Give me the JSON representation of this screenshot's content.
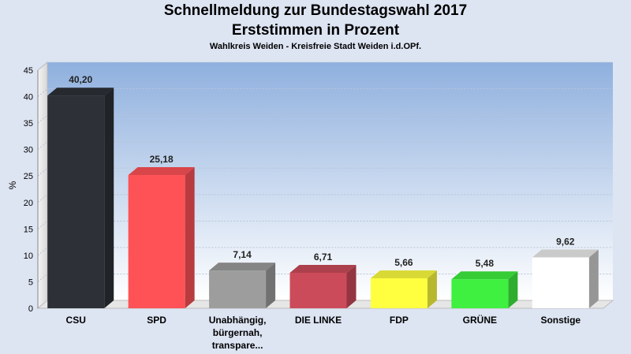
{
  "chart_data": {
    "type": "bar",
    "title": "Schnellmeldung zur Bundestagswahl 2017",
    "subtitle": "Erststimmen in Prozent",
    "subsubtitle": "Wahlkreis Weiden - Kreisfreie Stadt Weiden i.d.OPf.",
    "ylabel": "%",
    "ylim": [
      0,
      45
    ],
    "yticks": [
      0,
      5,
      10,
      15,
      20,
      25,
      30,
      35,
      40,
      45
    ],
    "categories": [
      [
        "CSU"
      ],
      [
        "SPD"
      ],
      [
        "Unabhängig,",
        "bürgernah,",
        "transpare..."
      ],
      [
        "DIE LINKE"
      ],
      [
        "FDP"
      ],
      [
        "GRÜNE"
      ],
      [
        "Sonstige"
      ]
    ],
    "values": [
      40.2,
      25.18,
      7.14,
      6.71,
      5.66,
      5.48,
      9.62
    ],
    "value_labels": [
      "40,20",
      "25,18",
      "7,14",
      "6,71",
      "5,66",
      "5,48",
      "9,62"
    ],
    "colors": [
      "#2d3036",
      "#ff5257",
      "#9d9d9d",
      "#cc4b5a",
      "#ffff40",
      "#40f040",
      "#ffffff"
    ],
    "grid": true
  }
}
